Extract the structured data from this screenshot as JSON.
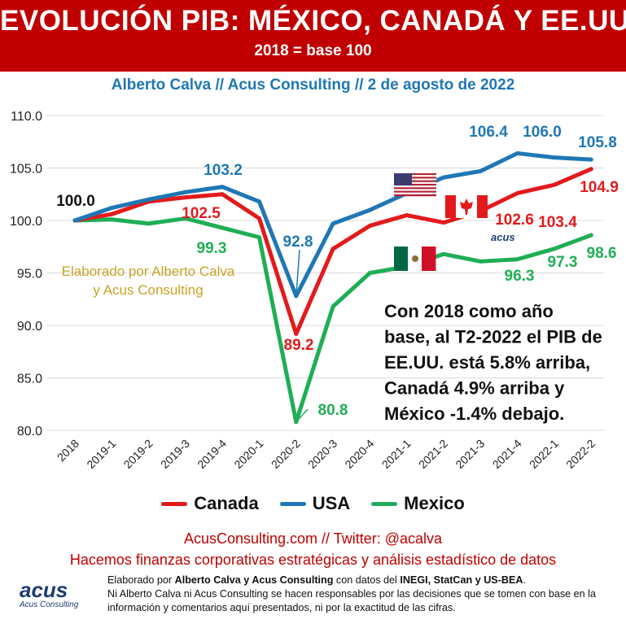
{
  "header": {
    "title": "EVOLUCIÓN PIB: MÉXICO, CANADÁ Y EE.UU.",
    "subtitle": "2018 = base 100",
    "author_line": "Alberto Calva // Acus Consulting // 2 de agosto de 2022"
  },
  "colors": {
    "canada": "#e31a1c",
    "usa": "#1f77b4",
    "mexico": "#1fae56",
    "brand_red": "#c00000"
  },
  "chart_data": {
    "type": "line",
    "title": "EVOLUCIÓN PIB: MÉXICO, CANADÁ Y EE.UU.",
    "ylim": [
      80,
      110
    ],
    "yticks": [
      "80.0",
      "85.0",
      "90.0",
      "95.0",
      "100.0",
      "105.0",
      "110.0"
    ],
    "categories": [
      "2018",
      "2019-1",
      "2019-2",
      "2019-3",
      "2019-4",
      "2020-1",
      "2020-2",
      "2020-3",
      "2020-4",
      "2021-1",
      "2021-2",
      "2021-3",
      "2021-4",
      "2022-1",
      "2022-2"
    ],
    "series": [
      {
        "name": "Canada",
        "color": "#e31a1c",
        "values": [
          100.0,
          100.6,
          101.8,
          102.2,
          102.5,
          100.2,
          89.2,
          97.3,
          99.5,
          100.5,
          99.8,
          100.9,
          102.6,
          103.4,
          104.9
        ]
      },
      {
        "name": "USA",
        "color": "#1f77b4",
        "values": [
          100.0,
          101.2,
          102.0,
          102.7,
          103.2,
          101.8,
          92.8,
          99.7,
          101.0,
          102.6,
          104.1,
          104.7,
          106.4,
          106.0,
          105.8
        ]
      },
      {
        "name": "Mexico",
        "color": "#1fae56",
        "values": [
          100.0,
          100.1,
          99.7,
          100.2,
          99.3,
          98.4,
          80.8,
          91.8,
          95.0,
          95.6,
          96.8,
          96.1,
          96.3,
          97.3,
          98.6
        ]
      }
    ],
    "annotations": {
      "start": "100.0",
      "usa_2019_4": "103.2",
      "canada_2019_4": "102.5",
      "mexico_2019_4": "99.3",
      "usa_2020_2": "92.8",
      "canada_2020_2": "89.2",
      "mexico_2020_2": "80.8",
      "usa_2021_4": "106.4",
      "usa_2022_1": "106.0",
      "usa_2022_2": "105.8",
      "canada_2021_4": "102.6",
      "canada_2022_1": "103.4",
      "canada_2022_2": "104.9",
      "mexico_2021_4": "96.3",
      "mexico_2022_1": "97.3",
      "mexico_2022_2": "98.6"
    },
    "note": [
      "Elaborado por Alberto Calva",
      "y Acus Consulting"
    ],
    "summary": [
      "Con 2018 como año",
      "base, al T2-2022 el PIB de",
      "EE.UU. está 5.8% arriba,",
      "Canadá 4.9% arriba y",
      "México -1.4% debajo."
    ],
    "watermark": "acus"
  },
  "legend": [
    {
      "label": "Canada",
      "color": "#e31a1c"
    },
    {
      "label": "USA",
      "color": "#1f77b4"
    },
    {
      "label": "Mexico",
      "color": "#1fae56"
    }
  ],
  "footer": {
    "site": "AcusConsulting.com // Twitter: @acalva",
    "slogan": "Hacemos finanzas corporativas estratégicas y análisis estadístico de datos",
    "logo_main": "acus",
    "logo_sub": "Acus Consulting",
    "disclaimer_1a": "Elaborado por ",
    "disclaimer_1b": "Alberto Calva y Acus Consulting",
    "disclaimer_1c": " con datos del ",
    "disclaimer_1d": "INEGI, StatCan y US-BEA",
    "disclaimer_1e": ".",
    "disclaimer_2": "Ni Alberto Calva ni Acus Consulting se hacen responsables por las decisiones que se tomen con base en la información y comentarios aquí presentados, ni por la exactitud de las cifras."
  }
}
